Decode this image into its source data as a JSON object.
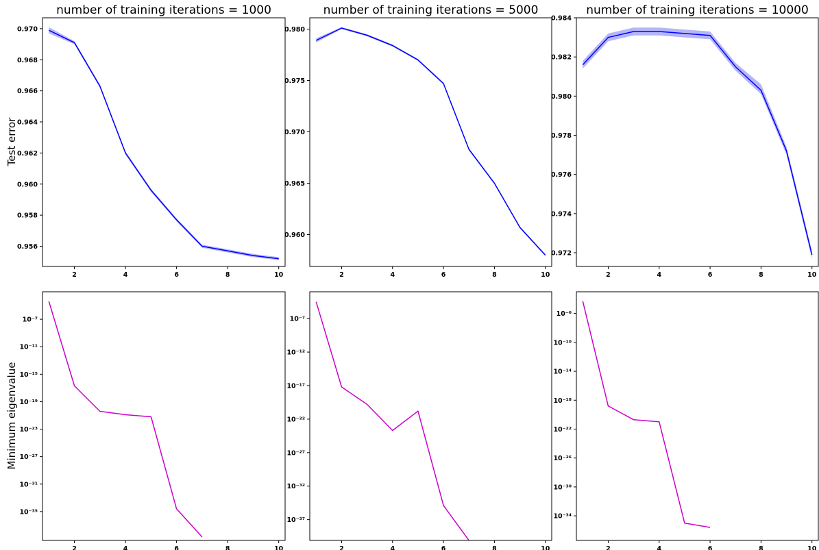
{
  "figure": {
    "ylabel_top": "Test error",
    "ylabel_bottom": "Minimum eigenvalue"
  },
  "chart_data": [
    {
      "type": "line",
      "title": "number of training iterations = 1000",
      "ylabel": "Test error",
      "x": [
        1,
        2,
        3,
        4,
        5,
        6,
        7,
        8,
        9,
        10
      ],
      "series": [
        {
          "values": [
            0.9699,
            0.9691,
            0.9663,
            0.962,
            0.9596,
            0.9577,
            0.956,
            0.9557,
            0.9554,
            0.9552
          ],
          "band_lower": [
            0.9697,
            0.969,
            0.9662,
            0.9619,
            0.9595,
            0.9576,
            0.9559,
            0.9556,
            0.9553,
            0.9551
          ],
          "band_upper": [
            0.9701,
            0.9692,
            0.9664,
            0.9621,
            0.9597,
            0.9578,
            0.9561,
            0.9558,
            0.9555,
            0.9553
          ]
        }
      ],
      "xlim": [
        0.75,
        10.25
      ],
      "ylim": [
        0.9547,
        0.9707
      ],
      "xticks": [
        2,
        4,
        6,
        8,
        10
      ],
      "yticks": [
        0.956,
        0.958,
        0.96,
        0.962,
        0.964,
        0.966,
        0.968,
        0.97
      ],
      "ytick_labels": [
        "0.956",
        "0.958",
        "0.960",
        "0.962",
        "0.964",
        "0.966",
        "0.968",
        "0.970"
      ],
      "line_color": "#0000ff",
      "band_color": "#a8a8f8",
      "yscale": "linear",
      "grid": false
    },
    {
      "type": "line",
      "title": "number of training iterations = 5000",
      "x": [
        1,
        2,
        3,
        4,
        5,
        6,
        7,
        8,
        9,
        10
      ],
      "series": [
        {
          "values": [
            0.9789,
            0.9801,
            0.9794,
            0.9784,
            0.977,
            0.9747,
            0.9683,
            0.965,
            0.9607,
            0.958
          ],
          "band_lower": [
            0.9787,
            0.98,
            0.9793,
            0.9783,
            0.9769,
            0.9746,
            0.9682,
            0.9649,
            0.9606,
            0.9579
          ],
          "band_upper": [
            0.9791,
            0.9802,
            0.9795,
            0.9785,
            0.9771,
            0.9748,
            0.9684,
            0.9651,
            0.9608,
            0.9581
          ]
        }
      ],
      "xlim": [
        0.75,
        10.25
      ],
      "ylim": [
        0.9569,
        0.9811
      ],
      "xticks": [
        2,
        4,
        6,
        8,
        10
      ],
      "yticks": [
        0.96,
        0.965,
        0.97,
        0.975,
        0.98
      ],
      "ytick_labels": [
        "0.960",
        "0.965",
        "0.970",
        "0.975",
        "0.980"
      ],
      "line_color": "#0000ff",
      "band_color": "#a8a8f8",
      "yscale": "linear",
      "grid": false
    },
    {
      "type": "line",
      "title": "number of training iterations = 10000",
      "x": [
        1,
        2,
        3,
        4,
        5,
        6,
        7,
        8,
        9,
        10
      ],
      "series": [
        {
          "values": [
            0.9816,
            0.983,
            0.9833,
            0.9833,
            0.9832,
            0.9831,
            0.9815,
            0.9803,
            0.9772,
            0.9719
          ],
          "band_lower": [
            0.9814,
            0.9828,
            0.9831,
            0.9831,
            0.983,
            0.9829,
            0.9813,
            0.9801,
            0.977,
            0.9717
          ],
          "band_upper": [
            0.9818,
            0.9832,
            0.9835,
            0.9835,
            0.9834,
            0.9833,
            0.9817,
            0.9806,
            0.9774,
            0.9721
          ]
        }
      ],
      "xlim": [
        0.75,
        10.25
      ],
      "ylim": [
        0.9713,
        0.984
      ],
      "xticks": [
        2,
        4,
        6,
        8,
        10
      ],
      "yticks": [
        0.972,
        0.974,
        0.976,
        0.978,
        0.98,
        0.982,
        0.984
      ],
      "ytick_labels": [
        "0.972",
        "0.974",
        "0.976",
        "0.978",
        "0.980",
        "0.982",
        "0.984"
      ],
      "line_color": "#0000ff",
      "band_color": "#a8a8f8",
      "yscale": "linear",
      "grid": false
    },
    {
      "type": "line",
      "ylabel": "Minimum eigenvalue",
      "x": [
        1,
        2,
        3,
        4,
        5,
        6,
        7
      ],
      "series": [
        {
          "log10_values": [
            -4.4,
            -16.7,
            -20.4,
            -20.9,
            -21.2,
            -34.6,
            -38.7
          ]
        }
      ],
      "xlim": [
        0.75,
        10.25
      ],
      "ylim_log10": [
        -39.2,
        -3.0
      ],
      "xticks": [
        2,
        4,
        6,
        8,
        10
      ],
      "yticks_log10": [
        -7,
        -11,
        -15,
        -19,
        -23,
        -27,
        -31,
        -35
      ],
      "ytick_labels": [
        "10⁻⁷",
        "10⁻¹¹",
        "10⁻¹⁵",
        "10⁻¹⁹",
        "10⁻²³",
        "10⁻²⁷",
        "10⁻³¹",
        "10⁻³⁵"
      ],
      "line_color": "#cc00cc",
      "yscale": "log",
      "grid": false
    },
    {
      "type": "line",
      "x": [
        1,
        2,
        3,
        4,
        5,
        6,
        7
      ],
      "series": [
        {
          "log10_values": [
            -4.5,
            -17.2,
            -19.8,
            -23.7,
            -20.8,
            -34.9,
            -40.1
          ]
        }
      ],
      "xlim": [
        0.75,
        10.25
      ],
      "ylim_log10": [
        -40.1,
        -3.0
      ],
      "xticks": [
        2,
        4,
        6,
        8,
        10
      ],
      "yticks_log10": [
        -7,
        -12,
        -17,
        -22,
        -27,
        -32,
        -37
      ],
      "ytick_labels": [
        "10⁻⁷",
        "10⁻¹²",
        "10⁻¹⁷",
        "10⁻²²",
        "10⁻²⁷",
        "10⁻³²",
        "10⁻³⁷"
      ],
      "line_color": "#cc00cc",
      "yscale": "log",
      "grid": false
    },
    {
      "type": "line",
      "x": [
        1,
        2,
        3,
        4,
        5,
        6
      ],
      "series": [
        {
          "log10_values": [
            -4.3,
            -18.8,
            -20.7,
            -21.0,
            -35.0,
            -35.6
          ]
        }
      ],
      "xlim": [
        0.75,
        10.25
      ],
      "ylim_log10": [
        -37.4,
        -3.0
      ],
      "xticks": [
        2,
        4,
        6,
        8,
        10
      ],
      "yticks_log10": [
        -6,
        -10,
        -14,
        -18,
        -22,
        -26,
        -30,
        -34
      ],
      "ytick_labels": [
        "10⁻⁶",
        "10⁻¹⁰",
        "10⁻¹⁴",
        "10⁻¹⁸",
        "10⁻²²",
        "10⁻²⁶",
        "10⁻³⁰",
        "10⁻³⁴"
      ],
      "line_color": "#cc00cc",
      "yscale": "log",
      "grid": false
    }
  ]
}
